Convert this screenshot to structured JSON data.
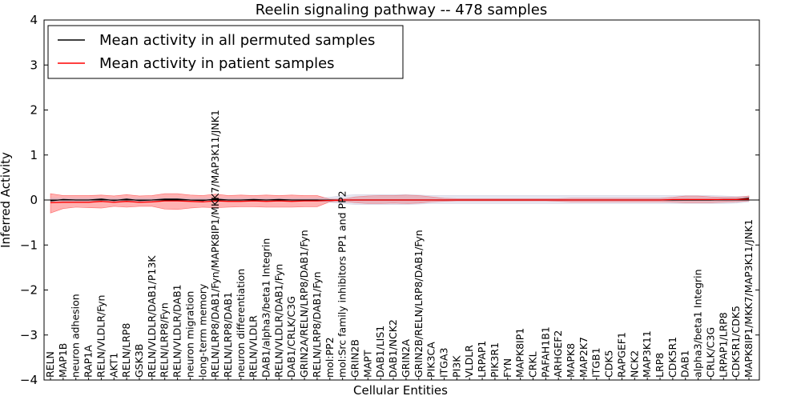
{
  "chart_data": {
    "type": "line",
    "title": "Reelin signaling pathway -- 478 samples",
    "xlabel": "Cellular Entities",
    "ylabel": "Inferred Activity",
    "ylim": [
      -4,
      4
    ],
    "yticks": [
      -4,
      -3,
      -2,
      -1,
      0,
      1,
      2,
      3,
      4
    ],
    "legend_position": "upper-left",
    "grid": false,
    "categories": [
      "RELN",
      "MAP1B",
      "neuron adhesion",
      "RAP1A",
      "RELN/VLDLR/Fyn",
      "AKT1",
      "RELN/LRP8",
      "GSK3B",
      "RELN/VLDLR/DAB1/P13K",
      "RELN/LRP8/Fyn",
      "RELN/VLDLR/DAB1",
      "neuron migration",
      "long-term memory",
      "RELN/LRP8/DAB1/Fyn/MAPK8IP1/MKK7/MAP3K11/JNK1",
      "RELN/LRP8/DAB1",
      "neuron differentiation",
      "RELN/VLDLR",
      "DAB1/alpha3/beta1 Integrin",
      "RELN/VLDLR/DAB1/Fyn",
      "DAB1/CRLK/C3G",
      "GRIN2A/RELN/LRP8/DAB1/Fyn",
      "RELN/LRP8/DAB1/Fyn",
      "mol:PP2",
      "mol:Src family inhibitors PP1 and PP2",
      "GRIN2B",
      "MAPT",
      "DAB1/LIS1",
      "DAB1/NCK2",
      "GRIN2A",
      "GRIN2B/RELN/LRP8/DAB1/Fyn",
      "PIK3CA",
      "ITGA3",
      "PI3K",
      "VLDLR",
      "LRPAP1",
      "PIK3R1",
      "FYN",
      "MAPK8IP1",
      "CRKL",
      "PAFAH1B1",
      "ARHGEF2",
      "MAPK8",
      "MAP2K7",
      "ITGB1",
      "CDK5",
      "RAPGEF1",
      "NCK2",
      "MAP3K11",
      "LRP8",
      "CDK5R1",
      "DAB1",
      "alpha3/beta1 Integrin",
      "CRLK/C3G",
      "LRPAP1/LRP8",
      "CDK5R1/CDK5",
      "MAPK8IP1/MKK7/MAP3K11/JNK1"
    ],
    "series": [
      {
        "name": "Mean activity in all permuted samples",
        "color": "#000000",
        "values": [
          -0.02,
          0.01,
          0.0,
          0.0,
          0.02,
          -0.01,
          0.02,
          -0.01,
          0.0,
          0.02,
          0.02,
          0.0,
          -0.01,
          0.02,
          0.0,
          0.0,
          0.01,
          0.0,
          0.01,
          0.0,
          0.0,
          0.0,
          -0.01,
          0.0,
          0.0,
          0.0,
          0.0,
          0.0,
          0.0,
          0.0,
          0.0,
          0.0,
          0.0,
          0.0,
          0.0,
          0.0,
          0.0,
          0.0,
          0.0,
          0.0,
          0.0,
          0.0,
          0.0,
          0.0,
          0.0,
          0.0,
          0.0,
          0.0,
          0.0,
          0.0,
          0.0,
          0.0,
          0.0,
          0.01,
          0.01,
          0.04
        ]
      },
      {
        "name": "Mean activity in patient samples",
        "color": "#ff0000",
        "values": [
          -0.06,
          -0.05,
          -0.05,
          -0.05,
          -0.03,
          -0.05,
          -0.03,
          -0.05,
          -0.04,
          -0.02,
          -0.02,
          -0.03,
          -0.04,
          -0.02,
          -0.03,
          -0.03,
          -0.02,
          -0.03,
          -0.02,
          -0.03,
          -0.02,
          -0.02,
          -0.01,
          0.0,
          0.0,
          0.0,
          0.0,
          0.0,
          0.0,
          0.0,
          0.0,
          0.0,
          0.0,
          0.0,
          0.0,
          0.0,
          0.0,
          0.0,
          0.0,
          0.0,
          0.0,
          0.0,
          0.0,
          0.0,
          0.0,
          0.0,
          0.0,
          0.0,
          0.0,
          0.01,
          0.01,
          0.01,
          0.01,
          0.01,
          0.01,
          0.02
        ]
      }
    ],
    "bands": [
      {
        "name": "patient spread",
        "color": "#ff0000",
        "opacity": 0.3,
        "lower": [
          -0.29,
          -0.19,
          -0.16,
          -0.17,
          -0.18,
          -0.14,
          -0.16,
          -0.14,
          -0.14,
          -0.2,
          -0.21,
          -0.18,
          -0.16,
          -0.17,
          -0.16,
          -0.15,
          -0.15,
          -0.16,
          -0.16,
          -0.16,
          -0.15,
          -0.15,
          -0.04,
          -0.03,
          -0.06,
          -0.08,
          -0.08,
          -0.07,
          -0.08,
          -0.07,
          -0.04,
          -0.03,
          -0.02,
          -0.02,
          -0.02,
          -0.02,
          -0.02,
          -0.02,
          -0.02,
          -0.02,
          -0.03,
          -0.04,
          -0.04,
          -0.04,
          -0.04,
          -0.04,
          -0.04,
          -0.04,
          -0.04,
          -0.05,
          -0.06,
          -0.06,
          -0.06,
          -0.05,
          -0.04,
          -0.02
        ],
        "upper": [
          0.14,
          0.1,
          0.1,
          0.1,
          0.11,
          0.09,
          0.12,
          0.09,
          0.1,
          0.14,
          0.14,
          0.11,
          0.1,
          0.13,
          0.1,
          0.11,
          0.1,
          0.11,
          0.1,
          0.11,
          0.1,
          0.1,
          0.02,
          0.02,
          0.07,
          0.09,
          0.1,
          0.1,
          0.11,
          0.1,
          0.07,
          0.04,
          0.03,
          0.03,
          0.03,
          0.03,
          0.03,
          0.03,
          0.03,
          0.03,
          0.03,
          0.04,
          0.04,
          0.04,
          0.04,
          0.04,
          0.04,
          0.04,
          0.04,
          0.06,
          0.09,
          0.09,
          0.07,
          0.06,
          0.06,
          0.09
        ]
      },
      {
        "name": "permuted spread",
        "color": "#b8b8d4",
        "opacity": 0.35,
        "lower": [
          -0.03,
          -0.03,
          -0.03,
          -0.03,
          -0.03,
          -0.03,
          -0.03,
          -0.03,
          -0.03,
          -0.03,
          -0.03,
          -0.03,
          -0.03,
          -0.03,
          -0.03,
          -0.03,
          -0.03,
          -0.03,
          -0.03,
          -0.03,
          -0.03,
          -0.03,
          -0.05,
          -0.08,
          -0.1,
          -0.1,
          -0.1,
          -0.1,
          -0.1,
          -0.09,
          -0.08,
          -0.08,
          -0.08,
          -0.08,
          -0.08,
          -0.08,
          -0.08,
          -0.08,
          -0.08,
          -0.08,
          -0.08,
          -0.08,
          -0.08,
          -0.08,
          -0.08,
          -0.08,
          -0.08,
          -0.08,
          -0.08,
          -0.08,
          -0.08,
          -0.08,
          -0.08,
          -0.08,
          -0.07,
          -0.04
        ],
        "upper": [
          0.04,
          0.04,
          0.04,
          0.04,
          0.04,
          0.04,
          0.04,
          0.04,
          0.04,
          0.04,
          0.04,
          0.04,
          0.04,
          0.04,
          0.04,
          0.04,
          0.04,
          0.04,
          0.04,
          0.04,
          0.04,
          0.04,
          0.06,
          0.1,
          0.12,
          0.12,
          0.12,
          0.12,
          0.12,
          0.11,
          0.1,
          0.1,
          0.1,
          0.1,
          0.1,
          0.1,
          0.1,
          0.1,
          0.1,
          0.1,
          0.1,
          0.1,
          0.1,
          0.1,
          0.1,
          0.1,
          0.1,
          0.1,
          0.1,
          0.1,
          0.1,
          0.1,
          0.1,
          0.09,
          0.08,
          0.08
        ]
      }
    ],
    "reference_line": 0
  }
}
